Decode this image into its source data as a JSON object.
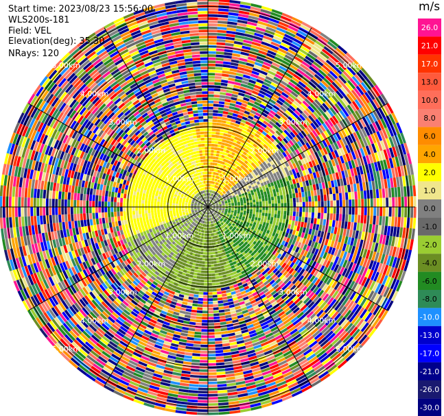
{
  "header": {
    "start_time_label": "Start time:",
    "start_time": "2023/08/23 15:56:00",
    "device": "WLS200s-181",
    "field_label": "Field:",
    "field": "VEL",
    "elevation_label": "Elevation(deg):",
    "elevation": "35.30",
    "nrays_label": "NRays:",
    "nrays": "120"
  },
  "colorbar": {
    "unit": "m/s",
    "labels": [
      "26.0",
      "21.0",
      "17.0",
      "13.0",
      "10.0",
      "8.0",
      "6.0",
      "4.0",
      "2.0",
      "1.0",
      "0.0",
      "-1.0",
      "-2.0",
      "-4.0",
      "-6.0",
      "-8.0",
      "-10.0",
      "-13.0",
      "-17.0",
      "-21.0",
      "-26.0",
      "-30.0"
    ],
    "colors": [
      "#ff1493",
      "#ff0000",
      "#ff3300",
      "#ff5a3c",
      "#ff6e5a",
      "#fa8072",
      "#ff8c00",
      "#ffa500",
      "#ffff00",
      "#f0e68c",
      "#808080",
      "#696969",
      "#9acd32",
      "#6b8e23",
      "#228b22",
      "#2e8b57",
      "#1e90ff",
      "#0000cd",
      "#0000ff",
      "#00008b",
      "#191970",
      "#000080"
    ]
  },
  "chart_data": {
    "type": "heatmap",
    "subtype": "ppi-polar",
    "field": "VEL",
    "unit": "m/s",
    "nrays": 120,
    "range_rings_km": [
      "1.00km",
      "2.00km",
      "3.00km",
      "4.00km",
      "5.00km"
    ],
    "range_ring_values_km": [
      1,
      2,
      3,
      4,
      5
    ],
    "color_scale_min": -30.0,
    "color_scale_max": 26.0,
    "grid": true
  }
}
